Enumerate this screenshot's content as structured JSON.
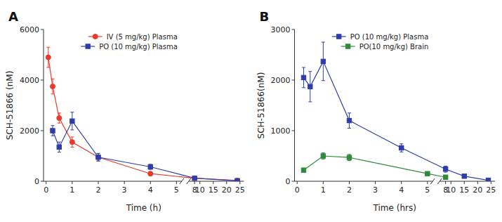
{
  "chart_data": [
    {
      "type": "line",
      "title": "A",
      "xlabel": "Time (h)",
      "ylabel": "SCH-51866 (nM)",
      "xlim": [
        [
          -0.1,
          5.2
        ],
        [
          5.8,
          26.5
        ]
      ],
      "xticks": [
        0,
        1,
        2,
        3,
        4,
        5,
        8,
        10,
        15,
        20,
        25
      ],
      "ylim": [
        0,
        6000
      ],
      "yticks": [
        0,
        2000,
        4000,
        6000
      ],
      "grid": false,
      "legend": "upper right",
      "series": [
        {
          "name": "IV (5 mg/kg) Plasma",
          "color": "#e8392a",
          "marker": "circle",
          "x": [
            0.083,
            0.25,
            0.5,
            1.0,
            2.0,
            4.0,
            8.0,
            24.0
          ],
          "values": [
            4900,
            3750,
            2500,
            1550,
            950,
            300,
            120,
            30
          ],
          "yerr": [
            400,
            300,
            200,
            200,
            150,
            80,
            50,
            20
          ]
        },
        {
          "name": "PO (10 mg/kg) Plasma",
          "color": "#2e3dab",
          "marker": "square",
          "x": [
            0.25,
            0.5,
            1.0,
            2.0,
            4.0,
            8.0,
            24.0
          ],
          "values": [
            2000,
            1350,
            2380,
            950,
            570,
            120,
            20
          ],
          "yerr": [
            200,
            200,
            350,
            150,
            100,
            40,
            10
          ]
        }
      ]
    },
    {
      "type": "line",
      "title": "B",
      "xlabel": "Time (hrs)",
      "ylabel": "SCH-51866(nM)",
      "xlim": [
        [
          -0.1,
          5.2
        ],
        [
          5.8,
          26.5
        ]
      ],
      "xticks": [
        0,
        1,
        2,
        3,
        4,
        5,
        8,
        10,
        15,
        20,
        25
      ],
      "ylim": [
        0,
        3000
      ],
      "yticks": [
        0,
        1000,
        2000,
        3000
      ],
      "grid": false,
      "legend": "upper right",
      "series": [
        {
          "name": "PO (10 mg/kg) Plasma",
          "color": "#2e3dab",
          "marker": "square",
          "x": [
            0.25,
            0.5,
            1.0,
            2.0,
            4.0,
            8.0,
            15.0,
            24.0
          ],
          "values": [
            2050,
            1870,
            2370,
            1200,
            660,
            240,
            100,
            20
          ],
          "yerr": [
            200,
            300,
            380,
            150,
            80,
            60,
            30,
            10
          ]
        },
        {
          "name": "PO(10 mg/kg) Brain",
          "color": "#2e8b3a",
          "marker": "square",
          "x": [
            0.25,
            1.0,
            2.0,
            5.0,
            8.0
          ],
          "values": [
            220,
            500,
            470,
            150,
            80
          ],
          "yerr": [
            30,
            60,
            60,
            30,
            20
          ]
        }
      ]
    }
  ]
}
